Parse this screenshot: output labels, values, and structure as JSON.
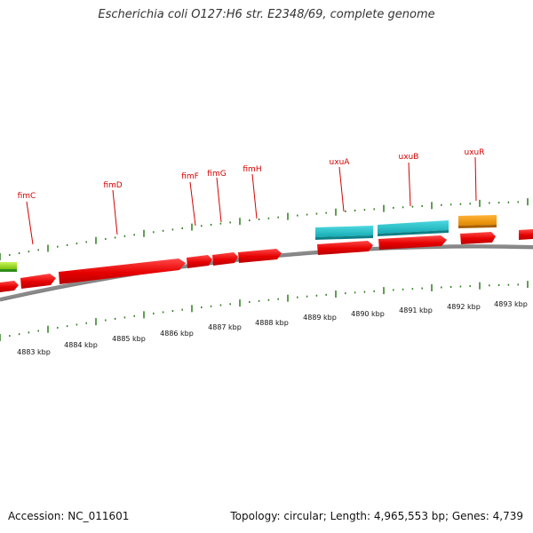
{
  "title": "Escherichia coli O127:H6 str. E2348/69, complete genome",
  "footer": {
    "accession": "Accession: NC_011601",
    "summary": "Topology: circular; Length: 4,965,553 bp; Genes: 4,739"
  },
  "colors": {
    "cds": "#ee0000",
    "rna_teal": "#20c4cc",
    "orange": "#f39a10",
    "lime": "#9de01a",
    "backbone": "#888888",
    "tick": "#2e7d1e",
    "label": "#d40000"
  },
  "genes": [
    {
      "name": "fimC"
    },
    {
      "name": "fimD"
    },
    {
      "name": "fimF"
    },
    {
      "name": "fimG"
    },
    {
      "name": "fimH"
    },
    {
      "name": "uxuA"
    },
    {
      "name": "uxuB"
    },
    {
      "name": "uxuR"
    }
  ],
  "scale_labels": [
    "4883 kbp",
    "4884 kbp",
    "4885 kbp",
    "4886 kbp",
    "4887 kbp",
    "4888 kbp",
    "4889 kbp",
    "4890 kbp",
    "4891 kbp",
    "4892 kbp",
    "4893 kbp"
  ]
}
